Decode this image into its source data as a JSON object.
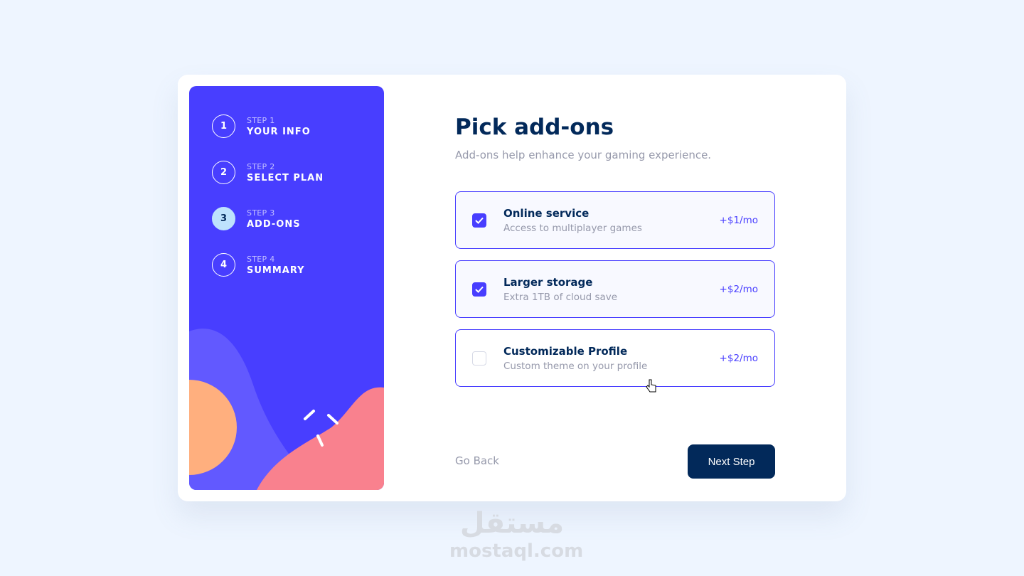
{
  "sidebar": {
    "steps": [
      {
        "number": "1",
        "label": "STEP 1",
        "name": "YOUR INFO",
        "active": false
      },
      {
        "number": "2",
        "label": "STEP 2",
        "name": "SELECT PLAN",
        "active": false
      },
      {
        "number": "3",
        "label": "STEP 3",
        "name": "ADD-ONS",
        "active": true
      },
      {
        "number": "4",
        "label": "STEP 4",
        "name": "SUMMARY",
        "active": false
      }
    ]
  },
  "main": {
    "title": "Pick add-ons",
    "subtitle": "Add-ons help enhance your gaming experience.",
    "addons": [
      {
        "title": "Online service",
        "desc": "Access to multiplayer games",
        "price": "+$1/mo",
        "checked": true
      },
      {
        "title": "Larger storage",
        "desc": "Extra 1TB of cloud save",
        "price": "+$2/mo",
        "checked": true
      },
      {
        "title": "Customizable Profile",
        "desc": "Custom theme on your profile",
        "price": "+$2/mo",
        "checked": false
      }
    ],
    "back_label": "Go Back",
    "next_label": "Next Step"
  },
  "watermark": {
    "arabic": "مستقل",
    "latin": "mostaql.com"
  },
  "colors": {
    "accent": "#483eff",
    "navy": "#02295a",
    "active_step": "#bee2fd",
    "background": "#eef5ff"
  }
}
